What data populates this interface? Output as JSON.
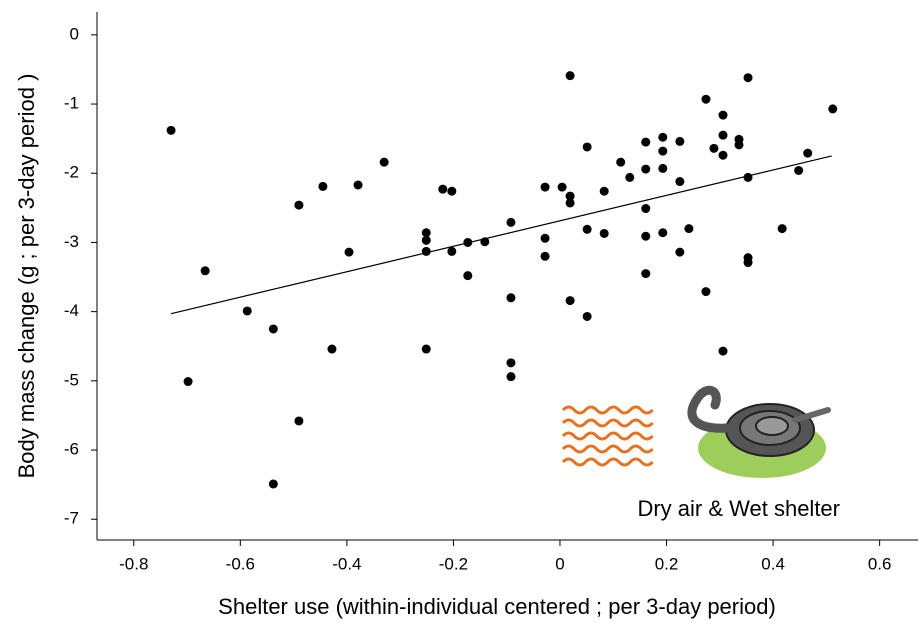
{
  "chart_data": {
    "type": "scatter",
    "x_label": "Shelter use (within-individual centered ; per 3-day period)",
    "y_label": "Body mass change (g ; per 3-day period )",
    "annotation": "Dry air & Wet shelter",
    "color": "#000000",
    "xlim": [
      -0.869,
      0.672
    ],
    "ylim": [
      -7.3,
      0.33
    ],
    "xticks": [
      -0.8,
      -0.6,
      -0.4,
      -0.2,
      0,
      0.2,
      0.4,
      0.6
    ],
    "yticks": [
      0,
      -1,
      -2,
      -3,
      -4,
      -5,
      -6,
      -7
    ],
    "x": [
      -0.73,
      -0.666,
      -0.698,
      -0.587,
      -0.538,
      -0.538,
      -0.49,
      -0.49,
      -0.445,
      -0.428,
      -0.396,
      -0.379,
      -0.33,
      -0.251,
      -0.251,
      -0.251,
      -0.251,
      -0.22,
      -0.203,
      -0.203,
      -0.173,
      -0.173,
      -0.141,
      -0.092,
      -0.092,
      -0.092,
      -0.092,
      -0.028,
      -0.028,
      -0.028,
      0.004,
      0.019,
      0.019,
      0.019,
      0.019,
      0.051,
      0.051,
      0.051,
      0.083,
      0.083,
      0.114,
      0.131,
      0.161,
      0.161,
      0.161,
      0.161,
      0.161,
      0.193,
      0.193,
      0.193,
      0.193,
      0.225,
      0.225,
      0.225,
      0.242,
      0.274,
      0.274,
      0.289,
      0.306,
      0.306,
      0.306,
      0.306,
      0.336,
      0.336,
      0.353,
      0.353,
      0.353,
      0.353,
      0.417,
      0.448,
      0.465,
      0.512
    ],
    "values": [
      -1.38,
      -3.41,
      -5.01,
      -3.99,
      -4.25,
      -6.49,
      -2.46,
      -5.58,
      -2.19,
      -4.54,
      -3.14,
      -2.17,
      -1.84,
      -2.86,
      -2.97,
      -3.13,
      -4.54,
      -2.23,
      -2.26,
      -3.13,
      -3.0,
      -3.48,
      -2.99,
      -2.71,
      -3.8,
      -4.74,
      -4.94,
      -2.2,
      -2.94,
      -3.2,
      -2.2,
      -0.59,
      -2.33,
      -2.43,
      -3.84,
      -1.62,
      -2.81,
      -4.07,
      -2.26,
      -2.87,
      -1.84,
      -2.06,
      -1.55,
      -1.94,
      -2.51,
      -2.91,
      -3.45,
      -1.48,
      -1.68,
      -1.93,
      -2.86,
      -1.54,
      -2.12,
      -3.14,
      -2.8,
      -0.93,
      -3.71,
      -1.64,
      -1.16,
      -1.45,
      -1.74,
      -4.57,
      -1.51,
      -1.59,
      -0.62,
      -2.06,
      -3.22,
      -3.29,
      -2.8,
      -1.96,
      -1.71,
      -1.07
    ],
    "trend": {
      "x": [
        -0.73,
        0.51
      ],
      "y": [
        -4.03,
        -1.75
      ]
    }
  }
}
